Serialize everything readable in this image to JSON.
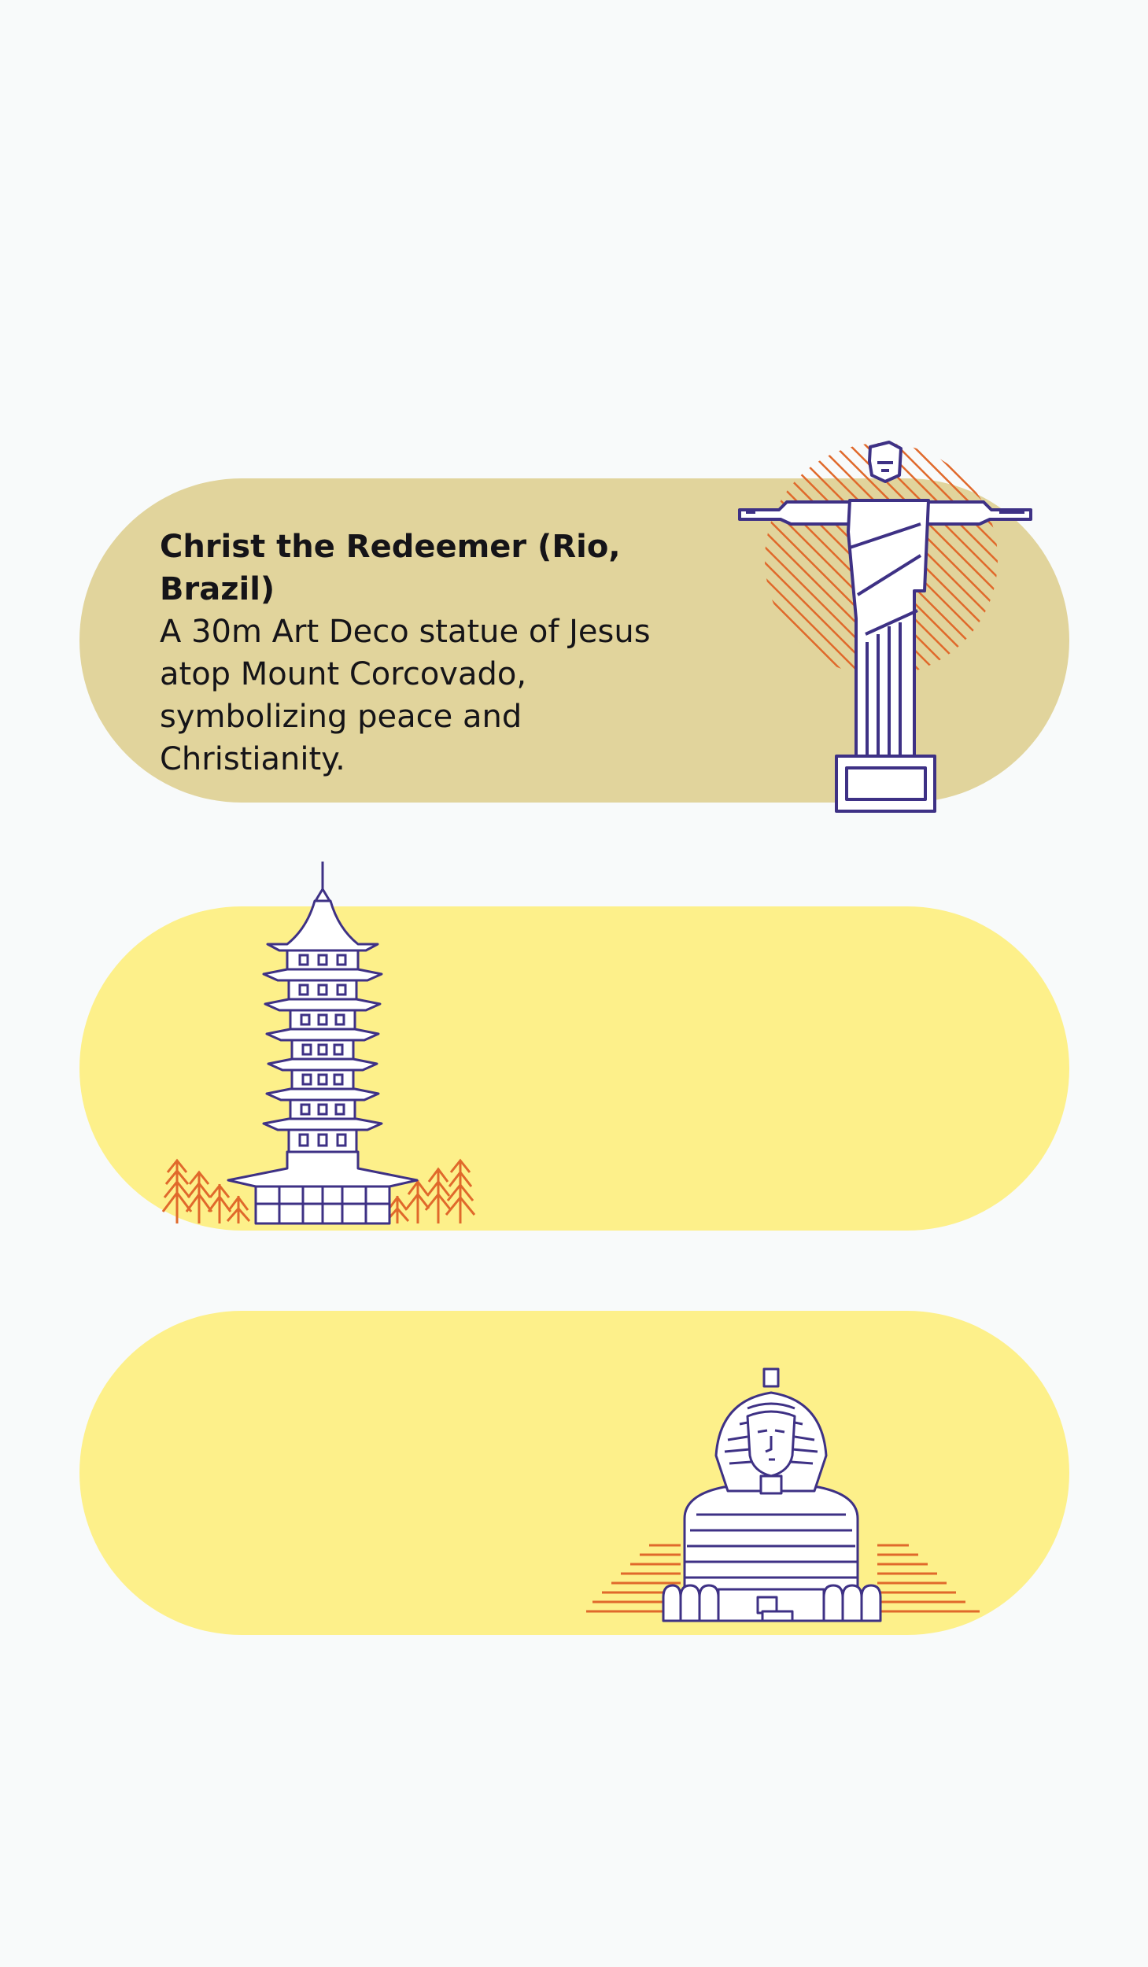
{
  "colors": {
    "background": "#f8fafa",
    "card_khaki": "#e1d49c",
    "card_yellow": "#fdf08a",
    "line_art": "#3e3185",
    "accent_orange": "#e0692b",
    "text": "#151418"
  },
  "cards": [
    {
      "title": "Christ the Redeemer (Rio, Brazil)",
      "description": "A 30m Art Deco statue of Jesus atop Mount Corcovado, symbolizing peace and Christianity.",
      "icon": "christ-the-redeemer-icon"
    },
    {
      "icon": "pagoda-icon"
    },
    {
      "icon": "sphinx-icon"
    }
  ]
}
